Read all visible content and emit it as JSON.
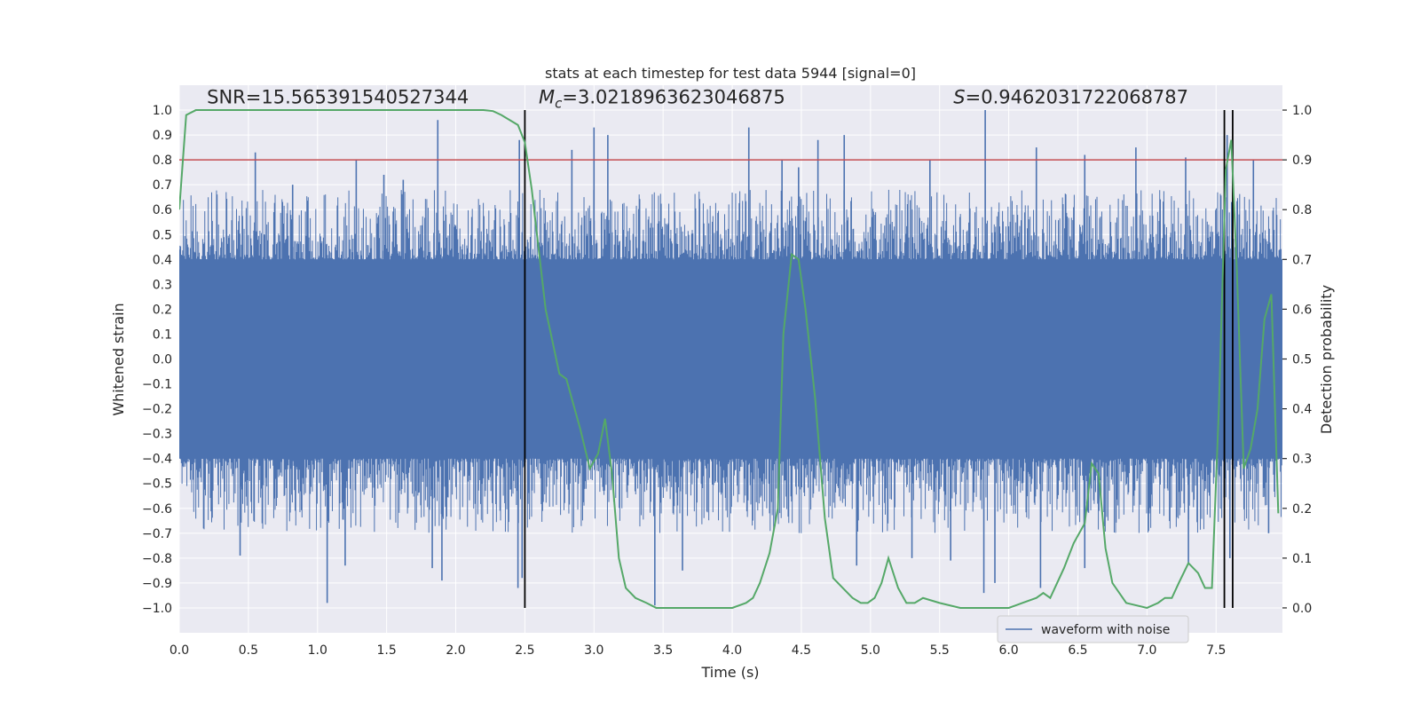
{
  "chart_data": {
    "type": "line",
    "title": "stats at each timestep for test data 5944 [signal=0]",
    "xlabel": "Time (s)",
    "ylabel": "Whitened strain",
    "y2label": "Detection probability",
    "xlim": [
      0.0,
      7.98
    ],
    "ylim": [
      -1.1,
      1.1
    ],
    "y2lim": [
      -0.05,
      1.05
    ],
    "xticks": [
      0.0,
      0.5,
      1.0,
      1.5,
      2.0,
      2.5,
      3.0,
      3.5,
      4.0,
      4.5,
      5.0,
      5.5,
      6.0,
      6.5,
      7.0,
      7.5
    ],
    "yticks": [
      -1.0,
      -0.9,
      -0.8,
      -0.7,
      -0.6,
      -0.5,
      -0.4,
      -0.3,
      -0.2,
      -0.1,
      0.0,
      0.1,
      0.2,
      0.3,
      0.4,
      0.5,
      0.6,
      0.7,
      0.8,
      0.9,
      1.0
    ],
    "y2ticks": [
      0.0,
      0.1,
      0.2,
      0.3,
      0.4,
      0.5,
      0.6,
      0.7,
      0.8,
      0.9,
      1.0
    ],
    "grid": true,
    "legend_position": "lower-right",
    "annotations": [
      {
        "text": "SNR=15.565391540527344",
        "x": 0.2,
        "y": 1.02
      },
      {
        "text_math": "M",
        "text_sub": "c",
        "text_rest": "=3.0218963623046875",
        "x": 2.6,
        "y": 1.02
      },
      {
        "text_math": "S",
        "text_sub": "",
        "text_rest": "=0.9462031722068787",
        "x": 5.6,
        "y": 1.02
      }
    ],
    "threshold_line": {
      "y2": 0.9,
      "color": "#c44e52"
    },
    "vertical_lines": [
      {
        "x": 2.5,
        "y_from": -1.0,
        "y_to": 1.0
      },
      {
        "x": 7.56,
        "y_from": -1.0,
        "y_to": 1.0
      },
      {
        "x": 7.62,
        "y_from": -1.0,
        "y_to": 1.0
      }
    ],
    "series": [
      {
        "name": "waveform with noise",
        "color": "#4c72b0",
        "kind": "noise_band",
        "core_envelope": 0.4,
        "typical_peak": 0.58,
        "spikes_upper": [
          [
            0.55,
            0.83
          ],
          [
            0.82,
            0.7
          ],
          [
            1.28,
            0.8
          ],
          [
            1.48,
            0.74
          ],
          [
            1.62,
            0.72
          ],
          [
            1.87,
            0.96
          ],
          [
            2.46,
            0.88
          ],
          [
            2.84,
            0.84
          ],
          [
            3.0,
            0.93
          ],
          [
            3.1,
            0.9
          ],
          [
            4.12,
            0.93
          ],
          [
            4.36,
            0.8
          ],
          [
            4.48,
            0.77
          ],
          [
            4.62,
            0.88
          ],
          [
            4.81,
            0.9
          ],
          [
            5.43,
            0.8
          ],
          [
            5.83,
            1.0
          ],
          [
            6.2,
            0.85
          ],
          [
            6.55,
            0.82
          ],
          [
            6.92,
            0.85
          ],
          [
            7.28,
            0.81
          ],
          [
            7.58,
            0.9
          ],
          [
            7.77,
            0.8
          ]
        ],
        "spikes_lower": [
          [
            0.44,
            -0.79
          ],
          [
            1.07,
            -0.98
          ],
          [
            1.2,
            -0.83
          ],
          [
            1.83,
            -0.84
          ],
          [
            1.9,
            -0.89
          ],
          [
            2.45,
            -0.92
          ],
          [
            2.48,
            -0.88
          ],
          [
            3.44,
            -0.99
          ],
          [
            3.64,
            -0.85
          ],
          [
            4.9,
            -0.83
          ],
          [
            5.3,
            -0.8
          ],
          [
            5.58,
            -0.81
          ],
          [
            5.82,
            -0.94
          ],
          [
            5.9,
            -0.9
          ],
          [
            6.23,
            -0.92
          ],
          [
            6.55,
            -0.84
          ],
          [
            7.3,
            -0.82
          ],
          [
            7.6,
            -0.8
          ],
          [
            7.88,
            -0.7
          ]
        ]
      },
      {
        "name": "",
        "color": "#55a868",
        "axis": "right",
        "x": [
          0.0,
          0.05,
          0.12,
          0.2,
          0.4,
          0.6,
          0.8,
          1.0,
          1.2,
          1.4,
          1.6,
          1.8,
          2.0,
          2.1,
          2.2,
          2.27,
          2.33,
          2.39,
          2.45,
          2.5,
          2.55,
          2.65,
          2.75,
          2.8,
          2.85,
          2.9,
          2.97,
          3.03,
          3.08,
          3.13,
          3.18,
          3.23,
          3.3,
          3.38,
          3.45,
          3.55,
          3.7,
          3.85,
          4.0,
          4.1,
          4.15,
          4.2,
          4.27,
          4.33,
          4.37,
          4.43,
          4.48,
          4.53,
          4.6,
          4.67,
          4.73,
          4.8,
          4.87,
          4.93,
          4.98,
          5.03,
          5.08,
          5.13,
          5.2,
          5.26,
          5.32,
          5.38,
          5.5,
          5.65,
          5.8,
          6.0,
          6.1,
          6.2,
          6.25,
          6.3,
          6.35,
          6.4,
          6.47,
          6.55,
          6.6,
          6.65,
          6.7,
          6.75,
          6.85,
          7.0,
          7.08,
          7.13,
          7.18,
          7.23,
          7.3,
          7.37,
          7.42,
          7.47,
          7.52,
          7.57,
          7.61,
          7.65,
          7.7,
          7.75,
          7.8,
          7.85,
          7.9,
          7.95
        ],
        "y": [
          0.8,
          0.99,
          1.0,
          1.0,
          1.0,
          1.0,
          1.0,
          1.0,
          1.0,
          1.0,
          1.0,
          1.0,
          1.0,
          1.0,
          1.0,
          0.998,
          0.99,
          0.98,
          0.97,
          0.935,
          0.84,
          0.6,
          0.47,
          0.46,
          0.41,
          0.36,
          0.28,
          0.31,
          0.38,
          0.27,
          0.1,
          0.04,
          0.02,
          0.01,
          0.0,
          0.0,
          0.0,
          0.0,
          0.0,
          0.01,
          0.02,
          0.05,
          0.11,
          0.2,
          0.55,
          0.71,
          0.7,
          0.6,
          0.42,
          0.18,
          0.06,
          0.04,
          0.02,
          0.01,
          0.01,
          0.02,
          0.05,
          0.1,
          0.04,
          0.01,
          0.01,
          0.02,
          0.01,
          0.0,
          0.0,
          0.0,
          0.01,
          0.02,
          0.03,
          0.02,
          0.05,
          0.08,
          0.13,
          0.17,
          0.29,
          0.27,
          0.12,
          0.05,
          0.01,
          0.0,
          0.01,
          0.02,
          0.02,
          0.05,
          0.09,
          0.07,
          0.04,
          0.04,
          0.4,
          0.88,
          0.94,
          0.68,
          0.28,
          0.32,
          0.4,
          0.58,
          0.63,
          0.19
        ]
      }
    ]
  }
}
